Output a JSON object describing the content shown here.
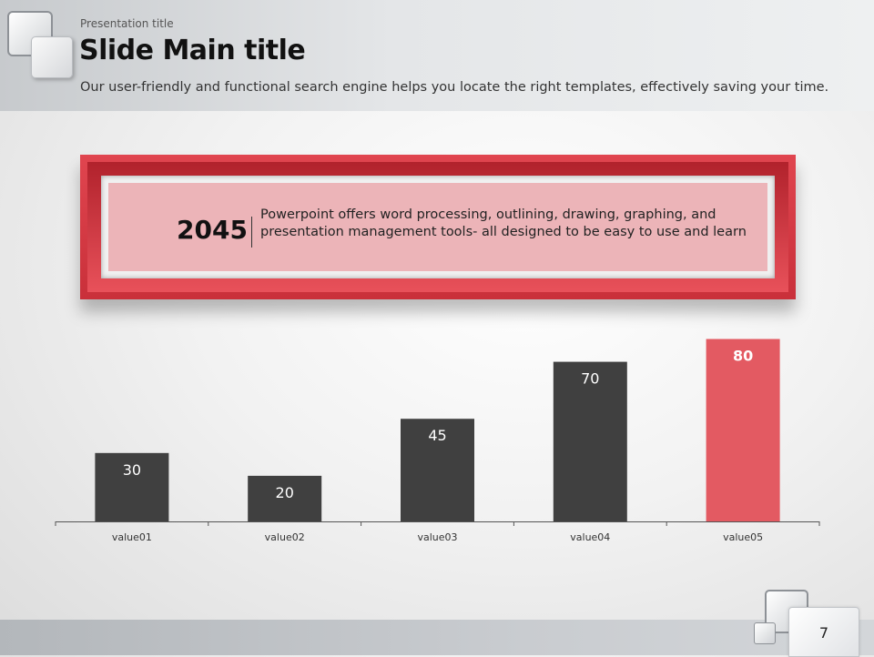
{
  "header": {
    "presentation_title": "Presentation title",
    "main_title": "Slide Main title",
    "subtitle": "Our user-friendly and functional search engine helps you locate the right templates, effectively saving your time."
  },
  "callout": {
    "year": "2045",
    "text": "Powerpoint offers word processing, outlining, drawing, graphing, and presentation management tools- all designed to be easy to use and learn"
  },
  "chart_data": {
    "type": "bar",
    "categories": [
      "value01",
      "value02",
      "value03",
      "value04",
      "value05"
    ],
    "values": [
      30,
      20,
      45,
      70,
      80
    ],
    "highlight_index": 4,
    "colors": {
      "default": "#404040",
      "highlight": "#e35a62"
    },
    "ylim": [
      0,
      85
    ],
    "title": "",
    "xlabel": "",
    "ylabel": "",
    "grid": false
  },
  "footer": {
    "page_number": "7"
  }
}
